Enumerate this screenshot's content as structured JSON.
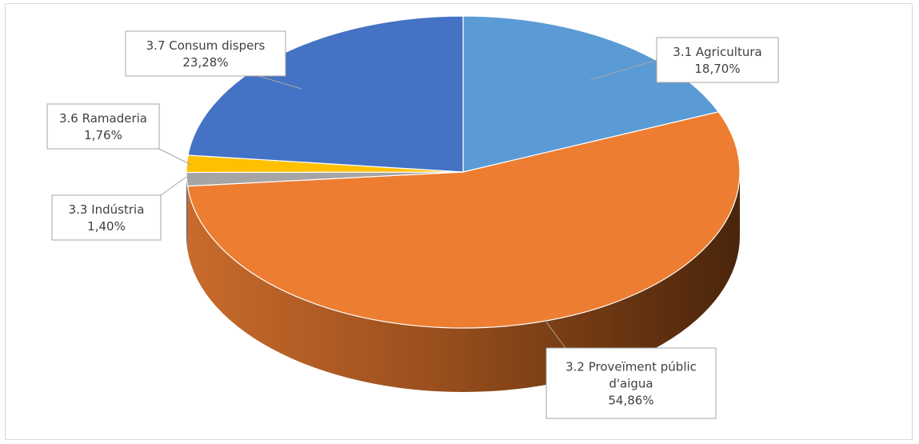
{
  "chart_data": {
    "type": "pie",
    "three_d": true,
    "slices": [
      {
        "label_lines": [
          "3.1 Agricultura"
        ],
        "value_text": "18,70%",
        "value": 18.7,
        "color": "#5b9bd5"
      },
      {
        "label_lines": [
          "3.2 Proveïment públic",
          "d'aigua"
        ],
        "value_text": "54,86%",
        "value": 54.86,
        "color": "#ed7d31"
      },
      {
        "label_lines": [
          "3.3 Indústria"
        ],
        "value_text": "1,40%",
        "value": 1.4,
        "color": "#a5a5a5"
      },
      {
        "label_lines": [
          "3.6 Ramaderia"
        ],
        "value_text": "1,76%",
        "value": 1.76,
        "color": "#ffc000"
      },
      {
        "label_lines": [
          "3.7 Consum dispers"
        ],
        "value_text": "23,28%",
        "value": 23.28,
        "color": "#4472c4"
      }
    ],
    "legend": "none",
    "data_labels": "callouts"
  }
}
